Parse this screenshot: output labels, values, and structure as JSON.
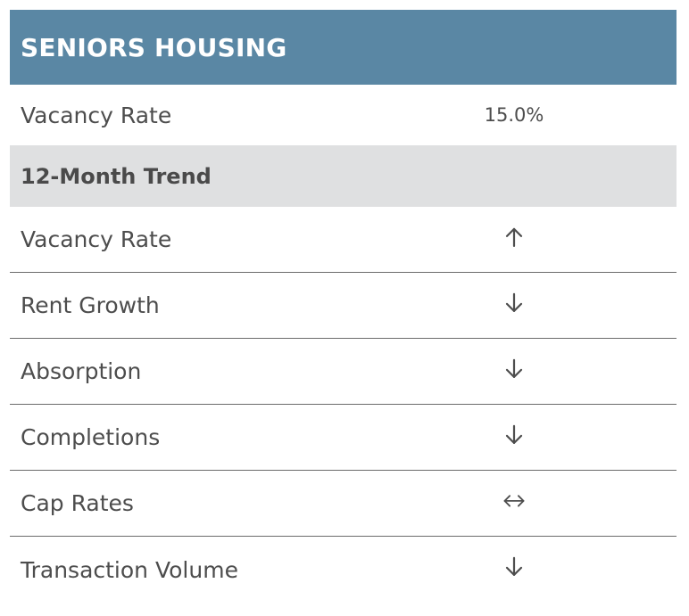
{
  "header": {
    "title": "SENIORS HOUSING"
  },
  "summary": {
    "label": "Vacancy Rate",
    "value": "15.0%"
  },
  "trend_section": {
    "title": "12-Month Trend",
    "rows": [
      {
        "label": "Vacancy Rate",
        "direction": "up",
        "icon": "arrow-up-icon"
      },
      {
        "label": "Rent Growth",
        "direction": "down",
        "icon": "arrow-down-icon"
      },
      {
        "label": "Absorption",
        "direction": "down",
        "icon": "arrow-down-icon"
      },
      {
        "label": "Completions",
        "direction": "down",
        "icon": "arrow-down-icon"
      },
      {
        "label": "Cap Rates",
        "direction": "flat",
        "icon": "arrow-left-right-icon"
      },
      {
        "label": "Transaction Volume",
        "direction": "down",
        "icon": "arrow-down-icon"
      }
    ]
  },
  "colors": {
    "header_background": "#5a87a4",
    "subheader_background": "#dfe0e1",
    "text": "#4d4d4d",
    "divider": "#6b6b6b"
  }
}
